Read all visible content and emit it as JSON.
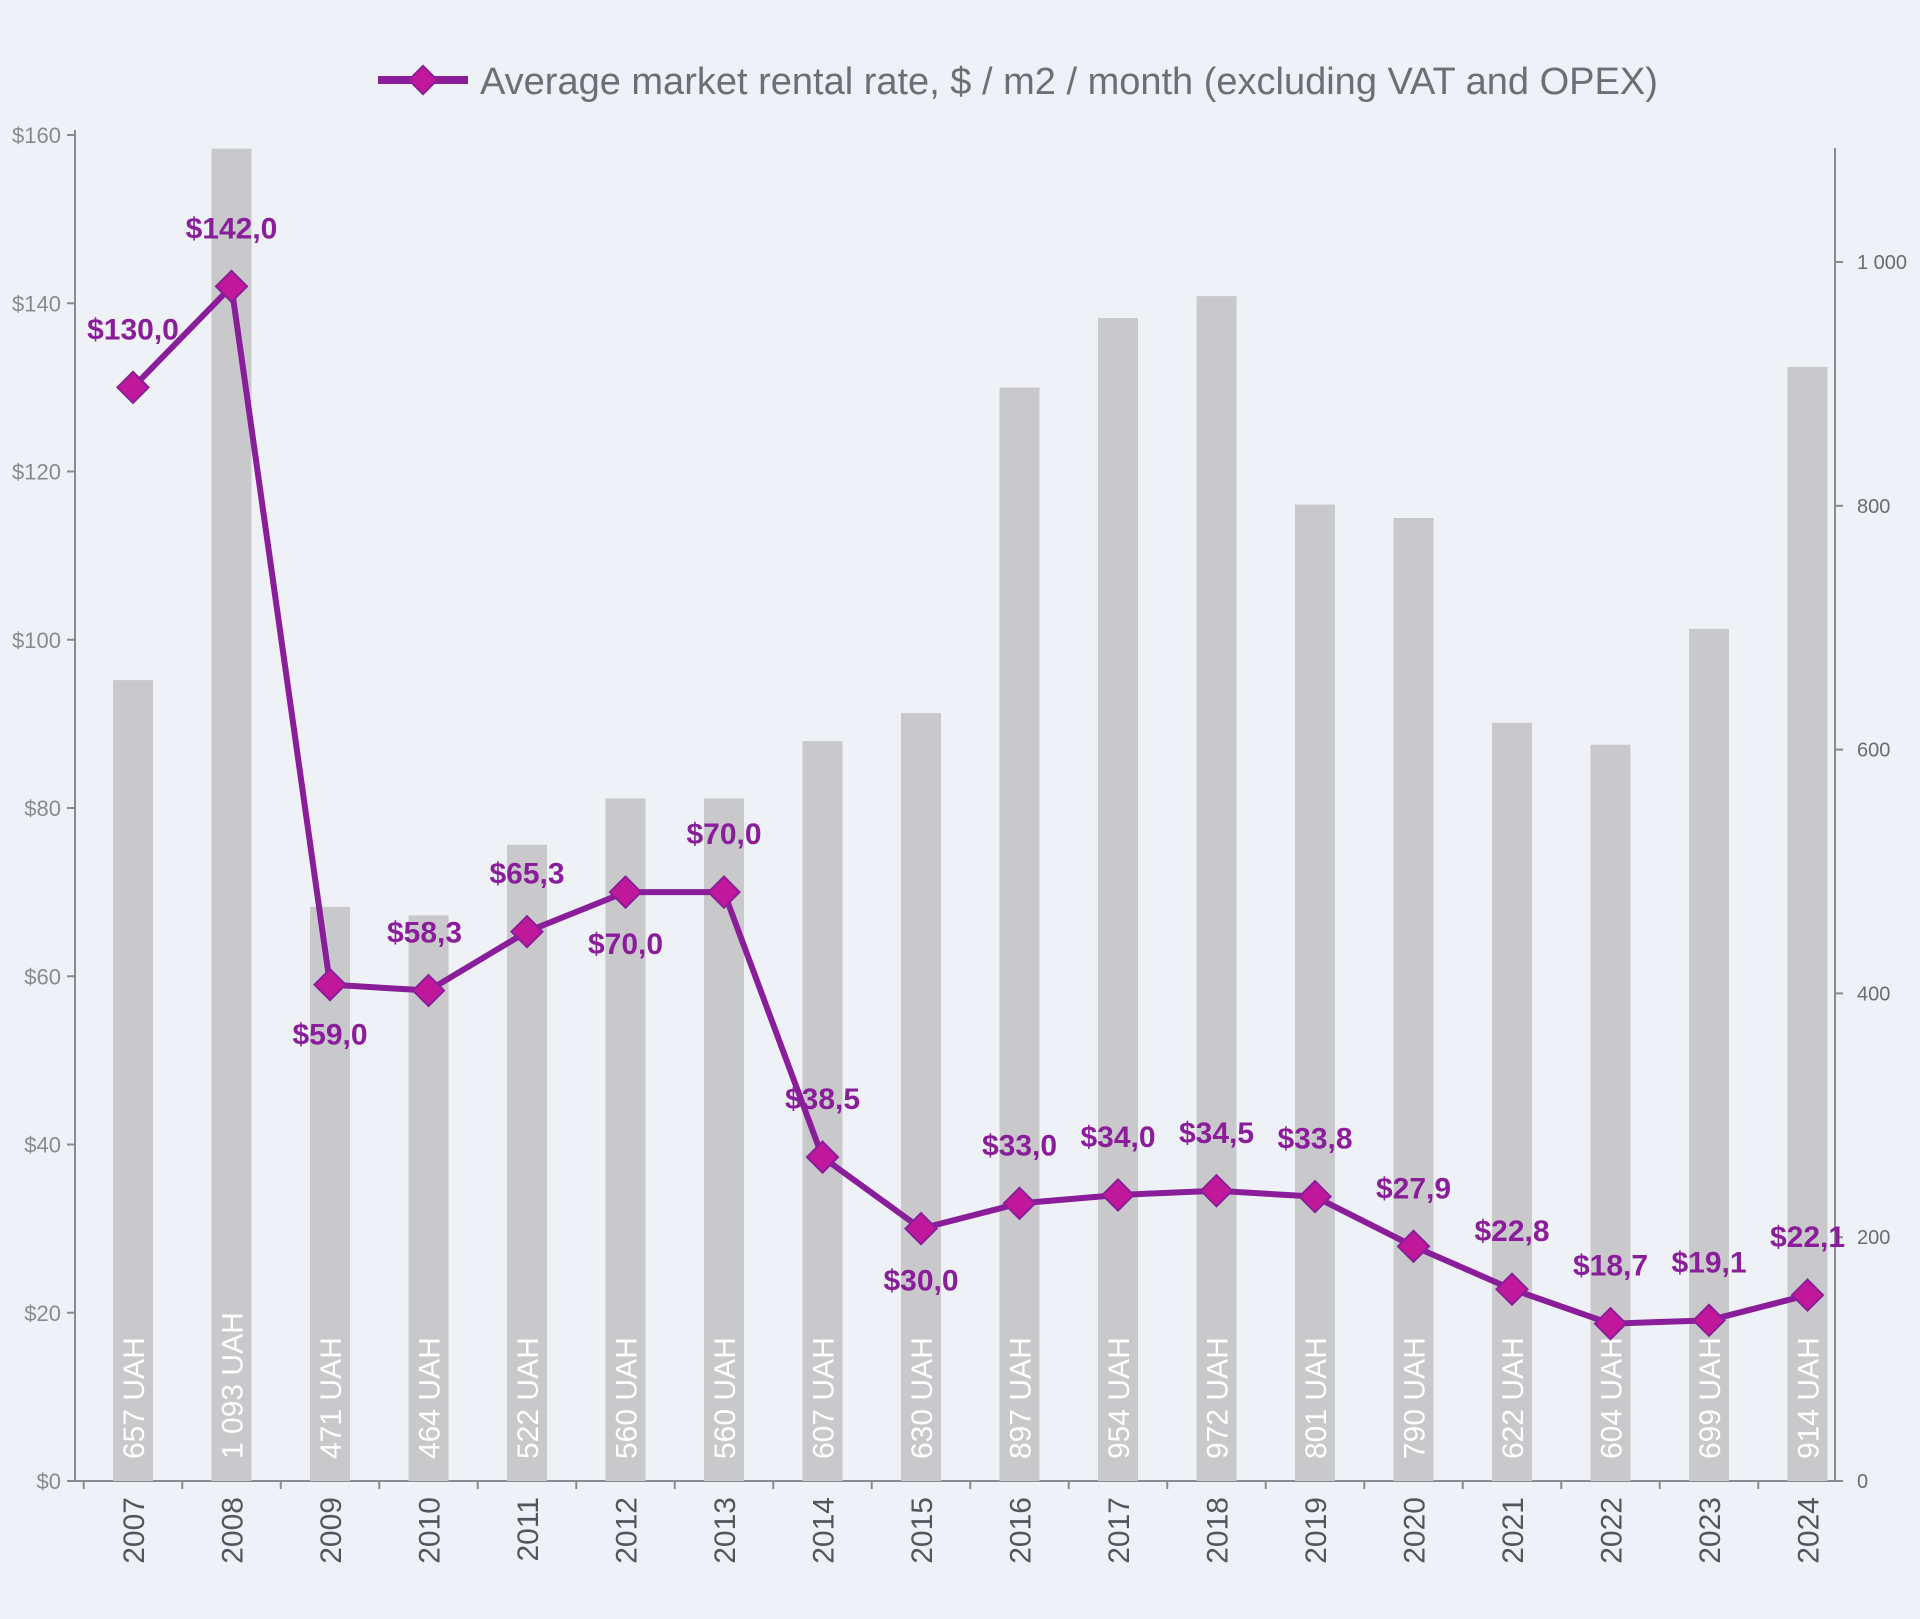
{
  "chart_data": {
    "type": "bar+line",
    "categories": [
      "2007",
      "2008",
      "2009",
      "2010",
      "2011",
      "2012",
      "2013",
      "2014",
      "2015",
      "2016",
      "2017",
      "2018",
      "2019",
      "2020",
      "2021",
      "2022",
      "2023",
      "2024"
    ],
    "series": [
      {
        "kind": "line",
        "axis": "left",
        "name": "Average market rental rate, $ / m2 / month (excluding VAT and OPEX)",
        "values": [
          130.0,
          142.0,
          59.0,
          58.3,
          65.3,
          70.0,
          70.0,
          38.5,
          30.0,
          33.0,
          34.0,
          34.5,
          33.8,
          27.9,
          22.8,
          18.7,
          19.1,
          22.1
        ],
        "labels": [
          "$130,0",
          "$142,0",
          "$59,0",
          "$58,3",
          "$65,3",
          "$70,0",
          "$70,0",
          "$38,5",
          "$30,0",
          "$33,0",
          "$34,0",
          "$34,5",
          "$33,8",
          "$27,9",
          "$22,8",
          "$18,7",
          "$19,1",
          "$22,1"
        ],
        "color": "#8a1e9a"
      },
      {
        "kind": "bar",
        "axis": "right",
        "values": [
          657,
          1093,
          471,
          464,
          522,
          560,
          560,
          607,
          630,
          897,
          954,
          972,
          801,
          790,
          622,
          604,
          699,
          914
        ],
        "labels": [
          "657 UAH",
          "1 093 UAH",
          "471 UAH",
          "464 UAH",
          "522 UAH",
          "560 UAH",
          "560 UAH",
          "607 UAH",
          "630 UAH",
          "897 UAH",
          "954 UAH",
          "972 UAH",
          "801 UAH",
          "790 UAH",
          "622 UAH",
          "604 UAH",
          "699 UAH",
          "914 UAH"
        ],
        "color": "#c9c9cc"
      }
    ],
    "y_left": {
      "ylim": [
        0,
        160
      ],
      "ticks": [
        "$0",
        "$20",
        "$40",
        "$60",
        "$80",
        "$100",
        "$120",
        "$140",
        "$160"
      ]
    },
    "y_right": {
      "ylim": [
        0,
        1100
      ],
      "ticks": [
        "0",
        "200",
        "400",
        "600",
        "800",
        "1 000"
      ]
    },
    "legend_position": "top",
    "grid": false
  },
  "colors": {
    "background": "#eef1f6",
    "line": "#8a1e9a",
    "marker": "#c0179b",
    "bar": "#c9c9cc"
  }
}
